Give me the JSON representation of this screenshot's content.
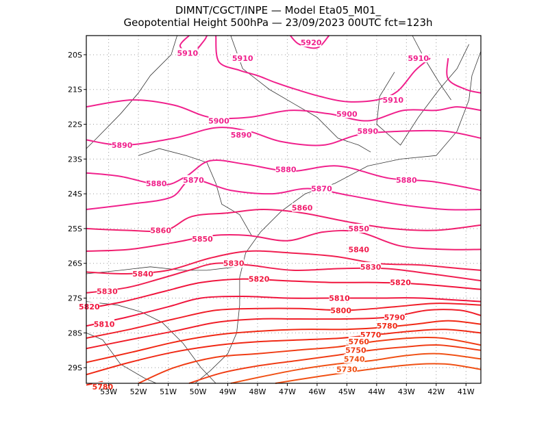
{
  "title_line1": "DIMNT/CGCT/INPE —  Model Eta05_M01_",
  "title_line2": "Geopotential Height 500hPa —  23/09/2023 00UTC fct=123h",
  "lat_labels": [
    "20S",
    "21S",
    "22S",
    "23S",
    "24S",
    "25S",
    "26S",
    "27S",
    "28S",
    "29S"
  ],
  "lon_labels": [
    "53W",
    "52W",
    "51W",
    "50W",
    "49W",
    "48W",
    "47W",
    "46W",
    "45W",
    "44W",
    "43W",
    "42W",
    "41W"
  ],
  "contours": [
    {
      "level": "5920",
      "color": "#f0208c",
      "labels": [
        {
          "lon": -46.2,
          "lat": -19.65,
          "text": "5920"
        }
      ]
    },
    {
      "level": "5910",
      "color": "#f0208c",
      "labels": [
        {
          "lon": -50.35,
          "lat": -19.95,
          "text": "5910"
        },
        {
          "lon": -48.5,
          "lat": -20.1,
          "text": "5910"
        },
        {
          "lon": -43.45,
          "lat": -21.3,
          "text": "5910"
        },
        {
          "lon": -42.6,
          "lat": -20.1,
          "text": "5910"
        }
      ]
    },
    {
      "level": "5900",
      "color": "#f0208c",
      "labels": [
        {
          "lon": -49.3,
          "lat": -21.9,
          "text": "5900"
        },
        {
          "lon": -45.0,
          "lat": -21.7,
          "text": "5900"
        }
      ]
    },
    {
      "level": "5890",
      "color": "#f0208c",
      "labels": [
        {
          "lon": -52.55,
          "lat": -22.6,
          "text": "5890"
        },
        {
          "lon": -48.55,
          "lat": -22.3,
          "text": "5890"
        },
        {
          "lon": -44.3,
          "lat": -22.2,
          "text": "5890"
        }
      ]
    },
    {
      "level": "5880",
      "color": "#f0208c",
      "labels": [
        {
          "lon": -51.4,
          "lat": -23.7,
          "text": "5880"
        },
        {
          "lon": -47.05,
          "lat": -23.3,
          "text": "5880"
        },
        {
          "lon": -43.0,
          "lat": -23.6,
          "text": "5880"
        }
      ]
    },
    {
      "level": "5870",
      "color": "#f0208c",
      "labels": [
        {
          "lon": -50.15,
          "lat": -23.6,
          "text": "5870"
        },
        {
          "lon": -45.85,
          "lat": -23.85,
          "text": "5870"
        }
      ]
    },
    {
      "level": "5860",
      "color": "#f01e6e",
      "labels": [
        {
          "lon": -51.25,
          "lat": -25.05,
          "text": "5860"
        },
        {
          "lon": -46.5,
          "lat": -24.4,
          "text": "5860"
        }
      ]
    },
    {
      "level": "5850",
      "color": "#f01e6e",
      "labels": [
        {
          "lon": -49.85,
          "lat": -25.3,
          "text": "5850"
        },
        {
          "lon": -44.6,
          "lat": -25.0,
          "text": "5850"
        }
      ]
    },
    {
      "level": "5840",
      "color": "#f01e50",
      "labels": [
        {
          "lon": -51.85,
          "lat": -26.3,
          "text": "5840"
        },
        {
          "lon": -44.6,
          "lat": -25.6,
          "text": "5840"
        }
      ]
    },
    {
      "level": "5830",
      "color": "#f01e50",
      "labels": [
        {
          "lon": -48.8,
          "lat": -26.0,
          "text": "5830"
        },
        {
          "lon": -53.05,
          "lat": -26.8,
          "text": "5830"
        },
        {
          "lon": -44.2,
          "lat": -26.1,
          "text": "5830"
        }
      ]
    },
    {
      "level": "5820",
      "color": "#f0143c",
      "labels": [
        {
          "lon": -53.65,
          "lat": -27.25,
          "text": "5820"
        },
        {
          "lon": -47.95,
          "lat": -26.45,
          "text": "5820"
        },
        {
          "lon": -43.2,
          "lat": -26.55,
          "text": "5820"
        }
      ]
    },
    {
      "level": "5810",
      "color": "#f0143c",
      "labels": [
        {
          "lon": -53.15,
          "lat": -27.75,
          "text": "5810"
        },
        {
          "lon": -45.25,
          "lat": -27.0,
          "text": "5810"
        }
      ]
    },
    {
      "level": "5800",
      "color": "#f01e28",
      "labels": [
        {
          "lon": -45.2,
          "lat": -27.35,
          "text": "5800"
        }
      ]
    },
    {
      "level": "5790",
      "color": "#f01e28",
      "labels": [
        {
          "lon": -43.4,
          "lat": -27.55,
          "text": "5790"
        }
      ]
    },
    {
      "level": "5780",
      "color": "#f02814",
      "labels": [
        {
          "lon": -43.65,
          "lat": -27.8,
          "text": "5780"
        },
        {
          "lon": -53.2,
          "lat": -29.55,
          "text": "5780"
        }
      ]
    },
    {
      "level": "5770",
      "color": "#f02814",
      "labels": [
        {
          "lon": -44.2,
          "lat": -28.05,
          "text": "5770"
        }
      ]
    },
    {
      "level": "5760",
      "color": "#f03c14",
      "labels": [
        {
          "lon": -44.6,
          "lat": -28.25,
          "text": "5760"
        }
      ]
    },
    {
      "level": "5750",
      "color": "#f03c14",
      "labels": [
        {
          "lon": -44.7,
          "lat": -28.5,
          "text": "5750"
        }
      ]
    },
    {
      "level": "5740",
      "color": "#f05014",
      "labels": [
        {
          "lon": -44.75,
          "lat": -28.75,
          "text": "5740"
        }
      ]
    },
    {
      "level": "5730",
      "color": "#f05014",
      "labels": [
        {
          "lon": -45.0,
          "lat": -29.05,
          "text": "5730"
        }
      ]
    }
  ]
}
